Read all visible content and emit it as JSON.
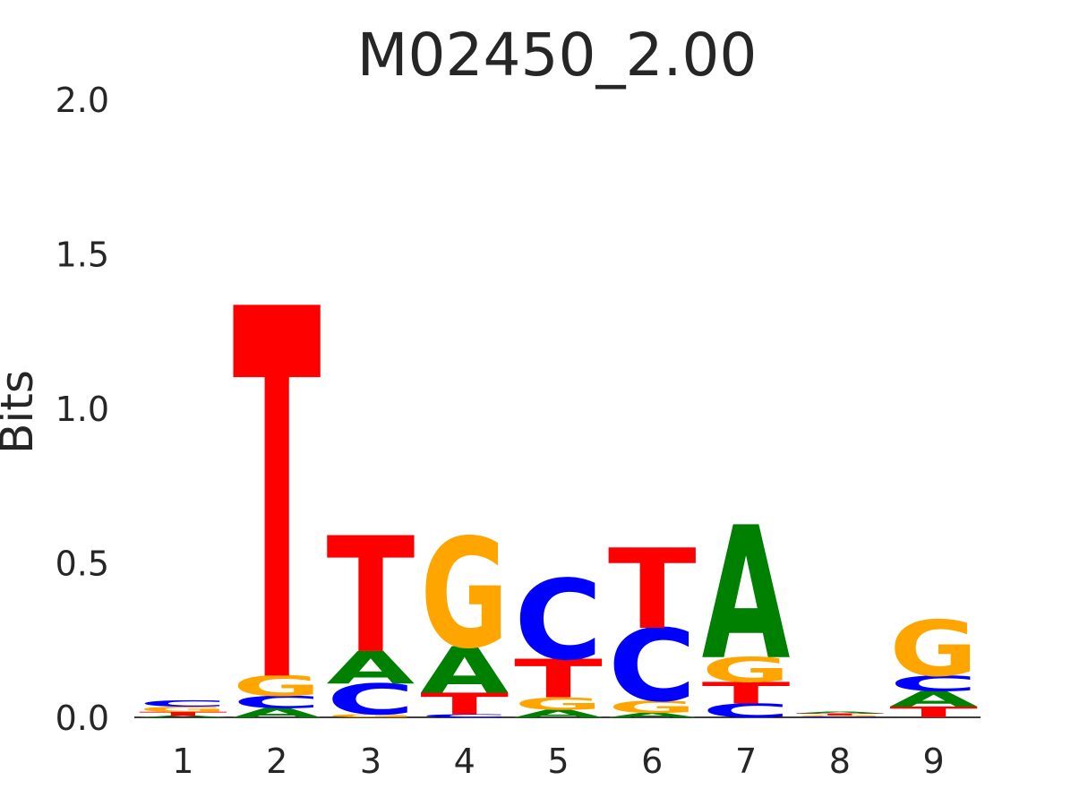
{
  "chart_data": {
    "type": "sequence-logo",
    "title": "M02450_2.00",
    "ylabel": "Bits",
    "xlabel": "",
    "ylim": [
      0,
      2.0
    ],
    "yticks": [
      "0.0",
      "0.5",
      "1.0",
      "1.5",
      "2.0"
    ],
    "categories": [
      "1",
      "2",
      "3",
      "4",
      "5",
      "6",
      "7",
      "8",
      "9"
    ],
    "colors": {
      "A": "#008000",
      "C": "#0000ff",
      "G": "#ffa500",
      "T": "#ff0000"
    },
    "positions": [
      {
        "position": "1",
        "stack": [
          {
            "base": "A",
            "bits": 0.005
          },
          {
            "base": "T",
            "bits": 0.013
          },
          {
            "base": "G",
            "bits": 0.017
          },
          {
            "base": "C",
            "bits": 0.02
          }
        ]
      },
      {
        "position": "2",
        "stack": [
          {
            "base": "A",
            "bits": 0.03
          },
          {
            "base": "C",
            "bits": 0.04
          },
          {
            "base": "G",
            "bits": 0.065
          },
          {
            "base": "T",
            "bits": 1.2
          }
        ]
      },
      {
        "position": "3",
        "stack": [
          {
            "base": "G",
            "bits": 0.01
          },
          {
            "base": "C",
            "bits": 0.1
          },
          {
            "base": "A",
            "bits": 0.105
          },
          {
            "base": "T",
            "bits": 0.375
          }
        ]
      },
      {
        "position": "4",
        "stack": [
          {
            "base": "C",
            "bits": 0.01
          },
          {
            "base": "T",
            "bits": 0.07
          },
          {
            "base": "A",
            "bits": 0.15
          },
          {
            "base": "G",
            "bits": 0.355
          }
        ]
      },
      {
        "position": "5",
        "stack": [
          {
            "base": "A",
            "bits": 0.025
          },
          {
            "base": "G",
            "bits": 0.04
          },
          {
            "base": "T",
            "bits": 0.125
          },
          {
            "base": "C",
            "bits": 0.26
          }
        ]
      },
      {
        "position": "6",
        "stack": [
          {
            "base": "A",
            "bits": 0.015
          },
          {
            "base": "G",
            "bits": 0.04
          },
          {
            "base": "C",
            "bits": 0.235
          },
          {
            "base": "T",
            "bits": 0.26
          }
        ]
      },
      {
        "position": "7",
        "stack": [
          {
            "base": "C",
            "bits": 0.045
          },
          {
            "base": "T",
            "bits": 0.07
          },
          {
            "base": "G",
            "bits": 0.08
          },
          {
            "base": "A",
            "bits": 0.43
          }
        ]
      },
      {
        "position": "8",
        "stack": [
          {
            "base": "C",
            "bits": 0.003
          },
          {
            "base": "G",
            "bits": 0.003
          },
          {
            "base": "T",
            "bits": 0.007
          },
          {
            "base": "A",
            "bits": 0.005
          }
        ]
      },
      {
        "position": "9",
        "stack": [
          {
            "base": "T",
            "bits": 0.035
          },
          {
            "base": "A",
            "bits": 0.05
          },
          {
            "base": "C",
            "bits": 0.05
          },
          {
            "base": "G",
            "bits": 0.18
          }
        ]
      }
    ]
  }
}
